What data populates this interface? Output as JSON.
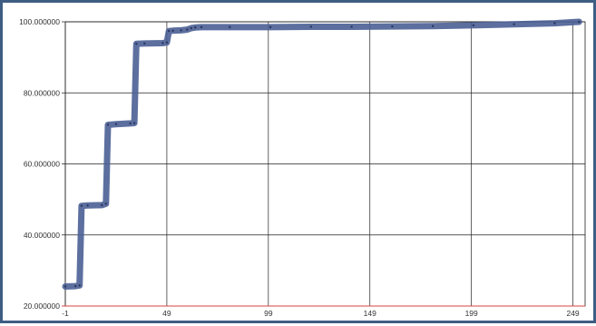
{
  "colors": {
    "frame": "#3f5d83",
    "series": "#4a5f95",
    "grid": "#222222",
    "baseline": "#d94040"
  },
  "chart_data": {
    "type": "line",
    "title": "",
    "xlabel": "",
    "ylabel": "",
    "xlim": [
      -1,
      255
    ],
    "ylim": [
      20,
      100
    ],
    "grid": true,
    "legend": "none",
    "x_ticks": [
      -1,
      49,
      99,
      149,
      199,
      249
    ],
    "x_tick_labels": [
      "-1",
      "49",
      "99",
      "149",
      "199",
      "249"
    ],
    "y_ticks": [
      20,
      40,
      60,
      80,
      100
    ],
    "y_tick_labels": [
      "20.000000",
      "40.000000",
      "60.000000",
      "80.000000",
      "100.000000"
    ],
    "series": [
      {
        "x": [
          -1,
          4,
          6,
          7,
          10,
          17,
          19,
          20,
          24,
          31,
          33,
          34,
          38,
          47,
          49,
          50,
          52,
          56,
          59,
          61,
          63,
          66,
          80,
          100,
          120,
          140,
          160,
          180,
          200,
          220,
          240,
          252
        ],
        "y": [
          25.5,
          25.6,
          25.8,
          48.2,
          48.3,
          48.4,
          48.8,
          71.0,
          71.2,
          71.4,
          71.5,
          93.8,
          93.9,
          94.0,
          94.2,
          97.4,
          97.5,
          97.6,
          97.8,
          98.2,
          98.4,
          98.5,
          98.5,
          98.5,
          98.6,
          98.6,
          98.7,
          98.8,
          99.0,
          99.3,
          99.6,
          100.0
        ]
      }
    ]
  }
}
